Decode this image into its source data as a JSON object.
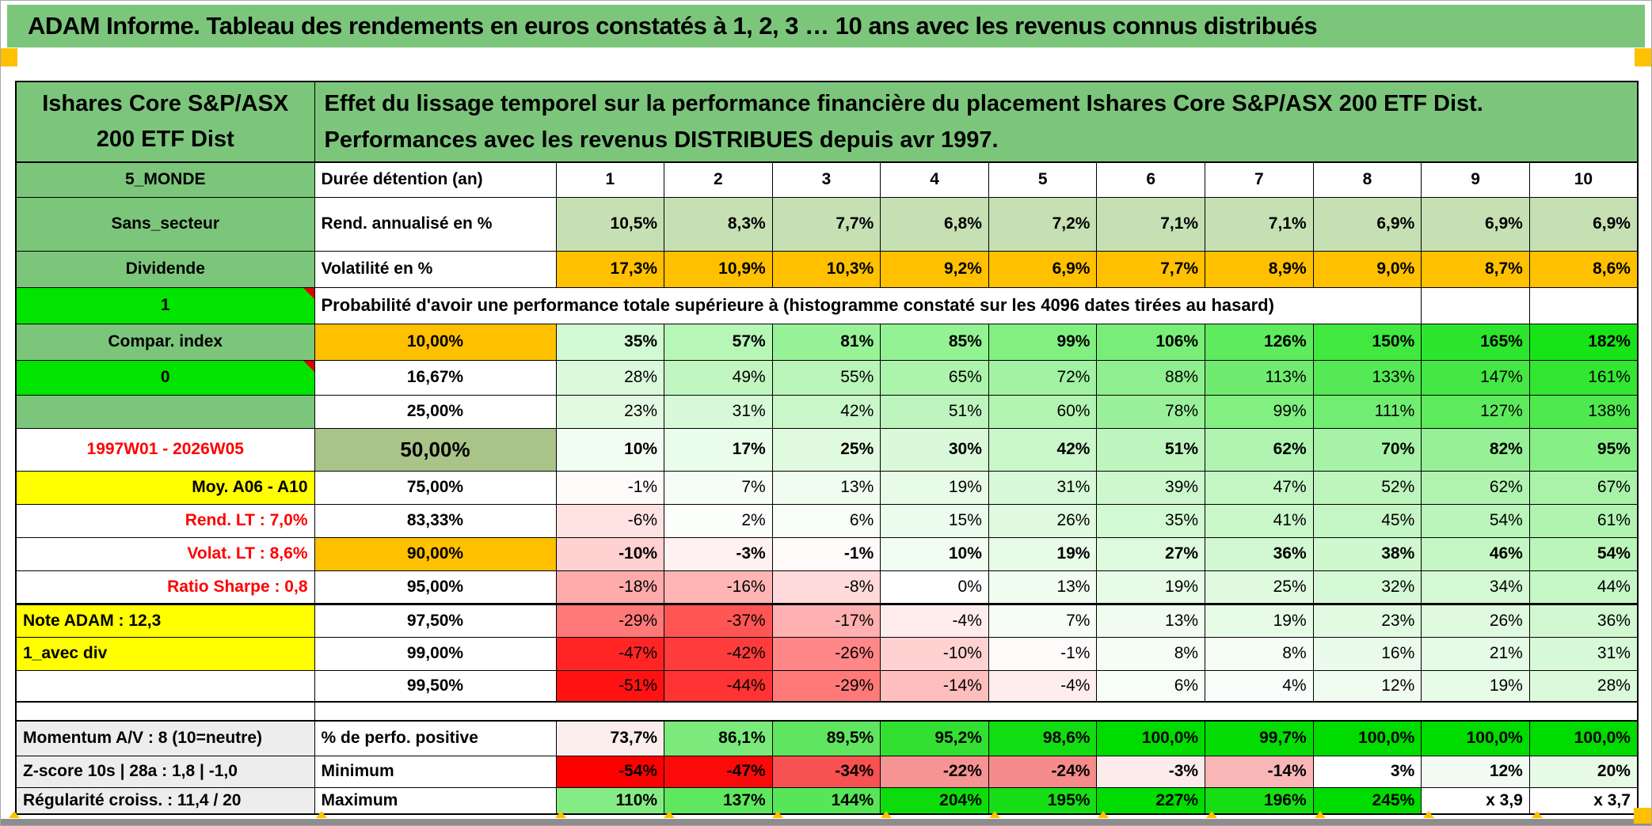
{
  "title_bar": "ADAM Informe. Tableau des rendements en euros constatés à 1, 2, 3 … 10 ans avec les revenus connus distribués",
  "header": {
    "fund_name": "Ishares Core S&P/ASX 200 ETF Dist",
    "description": "Effet du lissage temporel sur la performance financière du placement Ishares Core S&P/ASX 200 ETF Dist. Performances avec les revenus DISTRIBUES depuis avr 1997."
  },
  "colors": {
    "green": "#7cc67c",
    "bright_green": "#00e400",
    "orange": "#ffc000",
    "yellow": "#ffff00",
    "mid_green": "#a9c389",
    "light_green": "#c6e0b4",
    "gray_label": "#ededed",
    "red_text": "#ff0000"
  },
  "table": {
    "prob_text": "Probabilité d'avoir une performance totale supérieure à (histogramme constaté sur les 4096 dates tirées au hasard)",
    "rows": [
      {
        "side": "5_MONDE",
        "sideCls": "sg",
        "head": "Durée détention (an)",
        "headCls": "hl",
        "bold": true,
        "align": "center",
        "cells": [
          {
            "t": "1"
          },
          {
            "t": "2"
          },
          {
            "t": "3"
          },
          {
            "t": "4"
          },
          {
            "t": "5"
          },
          {
            "t": "6"
          },
          {
            "t": "7"
          },
          {
            "t": "8"
          },
          {
            "t": "9"
          },
          {
            "t": "10"
          }
        ]
      },
      {
        "side": "Sans_secteur",
        "sideCls": "sg",
        "head": "Rend. annualisé en %",
        "headCls": "hl",
        "bold": true,
        "cellBg": "#c6e0b4",
        "cells": [
          {
            "t": "10,5%"
          },
          {
            "t": "8,3%"
          },
          {
            "t": "7,7%"
          },
          {
            "t": "6,8%"
          },
          {
            "t": "7,2%"
          },
          {
            "t": "7,1%"
          },
          {
            "t": "7,1%"
          },
          {
            "t": "6,9%"
          },
          {
            "t": "6,9%"
          },
          {
            "t": "6,9%"
          }
        ]
      },
      {
        "side": "Dividende",
        "sideCls": "sg",
        "head": "Volatilité en %",
        "headCls": "hl",
        "bold": true,
        "cellBg": "#ffc000",
        "cells": [
          {
            "t": "17,3%"
          },
          {
            "t": "10,9%"
          },
          {
            "t": "10,3%"
          },
          {
            "t": "9,2%"
          },
          {
            "t": "6,9%"
          },
          {
            "t": "7,7%"
          },
          {
            "t": "8,9%"
          },
          {
            "t": "9,0%"
          },
          {
            "t": "8,7%"
          },
          {
            "t": "8,6%"
          }
        ]
      },
      {
        "type": "prob",
        "side": "1",
        "sideCls": "sbg",
        "tri": true
      },
      {
        "side": "Compar. index",
        "sideCls": "sg",
        "head": "10,00%",
        "headCls": "hor",
        "bold": true,
        "cells": [
          {
            "t": "35%",
            "bg": "#d2fad2"
          },
          {
            "t": "57%",
            "bg": "#b6f6b6"
          },
          {
            "t": "81%",
            "bg": "#98f298"
          },
          {
            "t": "85%",
            "bg": "#93f293"
          },
          {
            "t": "99%",
            "bg": "#81f081"
          },
          {
            "t": "106%",
            "bg": "#78ee78"
          },
          {
            "t": "126%",
            "bg": "#5eeb5e"
          },
          {
            "t": "150%",
            "bg": "#40e840"
          },
          {
            "t": "165%",
            "bg": "#2de52d"
          },
          {
            "t": "182%",
            "bg": "#17e317"
          }
        ]
      },
      {
        "side": "0",
        "sideCls": "sbg",
        "tri": true,
        "head": "16,67%",
        "headCls": "hp",
        "bold": false,
        "cells": [
          {
            "t": "28%",
            "bg": "#dbf9db"
          },
          {
            "t": "49%",
            "bg": "#c1f6c1"
          },
          {
            "t": "55%",
            "bg": "#b9f5b9"
          },
          {
            "t": "65%",
            "bg": "#acf3ac"
          },
          {
            "t": "72%",
            "bg": "#a3f2a3"
          },
          {
            "t": "88%",
            "bg": "#8fef8f"
          },
          {
            "t": "113%",
            "bg": "#6fec6f"
          },
          {
            "t": "133%",
            "bg": "#55e955"
          },
          {
            "t": "147%",
            "bg": "#44e744"
          },
          {
            "t": "161%",
            "bg": "#32e632"
          }
        ]
      },
      {
        "side": "",
        "sideCls": "sg",
        "head": "25,00%",
        "headCls": "hp",
        "bold": false,
        "cells": [
          {
            "t": "23%",
            "bg": "#e2fae2"
          },
          {
            "t": "31%",
            "bg": "#d7f9d7"
          },
          {
            "t": "42%",
            "bg": "#c9f7c9"
          },
          {
            "t": "51%",
            "bg": "#bef5be"
          },
          {
            "t": "60%",
            "bg": "#b2f4b2"
          },
          {
            "t": "78%",
            "bg": "#9bf19b"
          },
          {
            "t": "99%",
            "bg": "#81f081"
          },
          {
            "t": "111%",
            "bg": "#71ed71"
          },
          {
            "t": "127%",
            "bg": "#5deb5d"
          },
          {
            "t": "138%",
            "bg": "#4fe94f"
          }
        ]
      },
      {
        "side": "1997W01 - 2026W05",
        "sideCls": "src",
        "head": "50,00%",
        "headCls": "hmid",
        "bold": true,
        "cells": [
          {
            "t": "10%",
            "bg": "#f2fdf2"
          },
          {
            "t": "17%",
            "bg": "#eafcea"
          },
          {
            "t": "25%",
            "bg": "#e0fae0"
          },
          {
            "t": "30%",
            "bg": "#d9f9d9"
          },
          {
            "t": "42%",
            "bg": "#c9f7c9"
          },
          {
            "t": "51%",
            "bg": "#bef5be"
          },
          {
            "t": "62%",
            "bg": "#b0f3b0"
          },
          {
            "t": "70%",
            "bg": "#a6f2a6"
          },
          {
            "t": "82%",
            "bg": "#97f097"
          },
          {
            "t": "95%",
            "bg": "#86ef86"
          }
        ]
      },
      {
        "side": "Moy. A06 - A10",
        "sideCls": "syr",
        "head": "75,00%",
        "headCls": "hp",
        "bold": false,
        "cells": [
          {
            "t": "-1%",
            "bg": "#fffafa"
          },
          {
            "t": "7%",
            "bg": "#f6fdf6"
          },
          {
            "t": "13%",
            "bg": "#effcef"
          },
          {
            "t": "19%",
            "bg": "#e7fbe7"
          },
          {
            "t": "31%",
            "bg": "#d7f9d7"
          },
          {
            "t": "39%",
            "bg": "#cdf7cd"
          },
          {
            "t": "47%",
            "bg": "#c3f6c3"
          },
          {
            "t": "52%",
            "bg": "#bdf5bd"
          },
          {
            "t": "62%",
            "bg": "#b0f3b0"
          },
          {
            "t": "67%",
            "bg": "#aaf2aa"
          }
        ]
      },
      {
        "side": "Rend. LT :   7,0%",
        "sideCls": "srr",
        "head": "83,33%",
        "headCls": "hp",
        "bold": false,
        "cells": [
          {
            "t": "-6%",
            "bg": "#ffe3e3"
          },
          {
            "t": "2%",
            "bg": "#fcfefc"
          },
          {
            "t": "6%",
            "bg": "#f7fdf7"
          },
          {
            "t": "15%",
            "bg": "#ecfcec"
          },
          {
            "t": "26%",
            "bg": "#dffadf"
          },
          {
            "t": "35%",
            "bg": "#d2fad2"
          },
          {
            "t": "41%",
            "bg": "#caf7ca"
          },
          {
            "t": "45%",
            "bg": "#c5f6c5"
          },
          {
            "t": "54%",
            "bg": "#baf5ba"
          },
          {
            "t": "61%",
            "bg": "#b1f3b1"
          }
        ]
      },
      {
        "side": "Volat. LT :   8,6%",
        "sideCls": "srr",
        "head": "90,00%",
        "headCls": "hor",
        "bold": true,
        "cells": [
          {
            "t": "-10%",
            "bg": "#ffd1d1"
          },
          {
            "t": "-3%",
            "bg": "#fff1f1"
          },
          {
            "t": "-1%",
            "bg": "#fffafa"
          },
          {
            "t": "10%",
            "bg": "#f2fdf2"
          },
          {
            "t": "19%",
            "bg": "#e7fbe7"
          },
          {
            "t": "27%",
            "bg": "#defade"
          },
          {
            "t": "36%",
            "bg": "#d1f8d1"
          },
          {
            "t": "38%",
            "bg": "#cff8cf"
          },
          {
            "t": "46%",
            "bg": "#c4f6c4"
          },
          {
            "t": "54%",
            "bg": "#baf5ba"
          }
        ]
      },
      {
        "side": "Ratio Sharpe :   0,8",
        "sideCls": "srr",
        "head": "95,00%",
        "headCls": "hp",
        "bold": false,
        "cls": "thickb",
        "cells": [
          {
            "t": "-18%",
            "bg": "#ffabab"
          },
          {
            "t": "-16%",
            "bg": "#ffb5b5"
          },
          {
            "t": "-8%",
            "bg": "#ffdada"
          },
          {
            "t": "0%",
            "bg": "#ffffff"
          },
          {
            "t": "13%",
            "bg": "#effcef"
          },
          {
            "t": "19%",
            "bg": "#e7fbe7"
          },
          {
            "t": "25%",
            "bg": "#e0fae0"
          },
          {
            "t": "32%",
            "bg": "#d5f9d5"
          },
          {
            "t": "34%",
            "bg": "#d3f8d3"
          },
          {
            "t": "44%",
            "bg": "#c6f7c6"
          }
        ]
      },
      {
        "side": "Note ADAM : 12,3",
        "sideCls": "syl",
        "head": "97,50%",
        "headCls": "hp",
        "bold": false,
        "cells": [
          {
            "t": "-29%",
            "bg": "#ff7979"
          },
          {
            "t": "-37%",
            "bg": "#ff5555"
          },
          {
            "t": "-17%",
            "bg": "#ffb0b0"
          },
          {
            "t": "-4%",
            "bg": "#ffeded"
          },
          {
            "t": "7%",
            "bg": "#f6fdf6"
          },
          {
            "t": "13%",
            "bg": "#effcef"
          },
          {
            "t": "19%",
            "bg": "#e7fbe7"
          },
          {
            "t": "23%",
            "bg": "#e2fae2"
          },
          {
            "t": "26%",
            "bg": "#dffadf"
          },
          {
            "t": "36%",
            "bg": "#d1f8d1"
          }
        ]
      },
      {
        "side": "1_avec div",
        "sideCls": "syl",
        "head": "99,00%",
        "headCls": "hp",
        "bold": false,
        "cells": [
          {
            "t": "-47%",
            "bg": "#ff2525"
          },
          {
            "t": "-42%",
            "bg": "#ff3c3c"
          },
          {
            "t": "-26%",
            "bg": "#ff8787"
          },
          {
            "t": "-10%",
            "bg": "#ffd1d1"
          },
          {
            "t": "-1%",
            "bg": "#fffafa"
          },
          {
            "t": "8%",
            "bg": "#f5fdf5"
          },
          {
            "t": "8%",
            "bg": "#f5fdf5"
          },
          {
            "t": "16%",
            "bg": "#ebfbeb"
          },
          {
            "t": "21%",
            "bg": "#e5fbe5"
          },
          {
            "t": "31%",
            "bg": "#d7f9d7"
          }
        ]
      },
      {
        "side": "",
        "sideCls": "sw",
        "head": "99,50%",
        "headCls": "hp",
        "bold": false,
        "cls": "mainend",
        "cells": [
          {
            "t": "-51%",
            "bg": "#ff1212"
          },
          {
            "t": "-44%",
            "bg": "#ff3333"
          },
          {
            "t": "-29%",
            "bg": "#ff7979"
          },
          {
            "t": "-14%",
            "bg": "#ffbebe"
          },
          {
            "t": "-4%",
            "bg": "#ffeded"
          },
          {
            "t": "6%",
            "bg": "#f7fdf7"
          },
          {
            "t": "4%",
            "bg": "#fafefa"
          },
          {
            "t": "12%",
            "bg": "#f0fcf0"
          },
          {
            "t": "19%",
            "bg": "#e7fbe7"
          },
          {
            "t": "28%",
            "bg": "#dbf9db"
          }
        ]
      },
      {
        "type": "spacer"
      },
      {
        "side": "Momentum A/V : 8 (10=neutre)",
        "sideCls": "sgray",
        "head": "% de perfo. positive",
        "headCls": "hl",
        "bold": true,
        "cls": "botfirst",
        "cells": [
          {
            "t": "73,7%",
            "bg": "#fbedec"
          },
          {
            "t": "86,1%",
            "bg": "#7be97b"
          },
          {
            "t": "89,5%",
            "bg": "#60e560"
          },
          {
            "t": "95,2%",
            "bg": "#31e031"
          },
          {
            "t": "98,6%",
            "bg": "#12dd12"
          },
          {
            "t": "100,0%",
            "bg": "#00db00"
          },
          {
            "t": "99,7%",
            "bg": "#04dc04"
          },
          {
            "t": "100,0%",
            "bg": "#00db00"
          },
          {
            "t": "100,0%",
            "bg": "#00db00"
          },
          {
            "t": "100,0%",
            "bg": "#00db00"
          }
        ]
      },
      {
        "side": "Z-score 10s | 28a : 1,8 | -1,0",
        "sideCls": "sgray",
        "head": "Minimum",
        "headCls": "hl",
        "bold": true,
        "cells": [
          {
            "t": "-54%",
            "bg": "#ff0000"
          },
          {
            "t": "-47%",
            "bg": "#fb0a0a"
          },
          {
            "t": "-34%",
            "bg": "#f75151"
          },
          {
            "t": "-22%",
            "bg": "#f69393"
          },
          {
            "t": "-24%",
            "bg": "#f68b8b"
          },
          {
            "t": "-3%",
            "bg": "#fcebeb"
          },
          {
            "t": "-14%",
            "bg": "#f8b6b6"
          },
          {
            "t": "3%",
            "bg": "#ffffff"
          },
          {
            "t": "12%",
            "bg": "#f1fbf1"
          },
          {
            "t": "20%",
            "bg": "#e6fae6"
          }
        ]
      },
      {
        "side": "Régularité croiss. : 11,4 / 20",
        "sideCls": "sgray",
        "head": "Maximum",
        "headCls": "hl",
        "bold": true,
        "cells": [
          {
            "t": "110%",
            "bg": "#85ec85"
          },
          {
            "t": "137%",
            "bg": "#5fe75f"
          },
          {
            "t": "144%",
            "bg": "#57e657"
          },
          {
            "t": "204%",
            "bg": "#0cdc0c"
          },
          {
            "t": "195%",
            "bg": "#17de17"
          },
          {
            "t": "227%",
            "bg": "#00db00"
          },
          {
            "t": "196%",
            "bg": "#15de15"
          },
          {
            "t": "245%",
            "bg": "#00db00"
          },
          {
            "t": "x 3,9",
            "bg": "#ffffff"
          },
          {
            "t": "x 3,7",
            "bg": "#ffffff"
          }
        ]
      }
    ]
  }
}
